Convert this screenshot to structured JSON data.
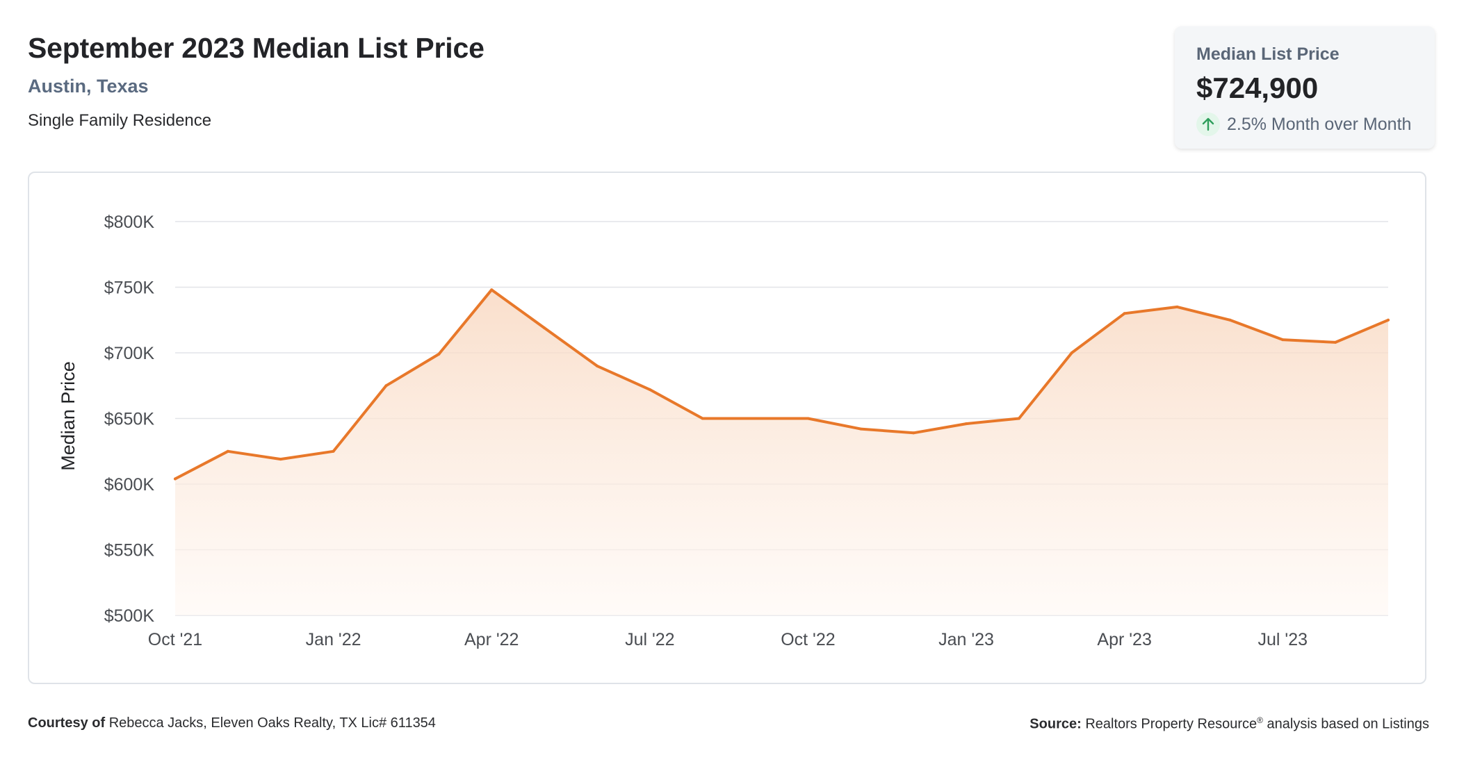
{
  "header": {
    "title": "September 2023 Median List Price",
    "location": "Austin, Texas",
    "property_type": "Single Family Residence"
  },
  "kpi": {
    "label": "Median List Price",
    "value": "$724,900",
    "change": "2.5% Month over Month",
    "direction_icon": "arrow-up-icon",
    "positive_color": "#2e9e5b"
  },
  "footer": {
    "courtesy_label": "Courtesy of",
    "courtesy_text": "Rebecca Jacks, Eleven Oaks Realty, TX Lic# 611354",
    "source_label": "Source:",
    "source_text_before": "Realtors Property Resource",
    "source_mark": "®",
    "source_text_after": " analysis based on Listings"
  },
  "colors": {
    "line": "#e8782a",
    "fill_top": "#f8d7bf",
    "fill_bottom": "#fff8f3",
    "grid": "#e2e4e8",
    "tick_text": "#4a4d52"
  },
  "chart_data": {
    "type": "area",
    "ylabel": "Median Price",
    "xlabel": "",
    "ylim": [
      500000,
      800000
    ],
    "y_ticks": [
      500000,
      550000,
      600000,
      650000,
      700000,
      750000,
      800000
    ],
    "y_tick_labels": [
      "$500K",
      "$550K",
      "$600K",
      "$650K",
      "$700K",
      "$750K",
      "$800K"
    ],
    "x_tick_labels": [
      "Oct '21",
      "Jan '22",
      "Apr '22",
      "Jul '22",
      "Oct '22",
      "Jan '23",
      "Apr '23",
      "Jul '23"
    ],
    "x_tick_indices": [
      0,
      3,
      6,
      9,
      12,
      15,
      18,
      21
    ],
    "grid": true,
    "series": [
      {
        "months": [
          "2021-10",
          "2021-11",
          "2021-12",
          "2022-01",
          "2022-02",
          "2022-03",
          "2022-04",
          "2022-05",
          "2022-06",
          "2022-07",
          "2022-08",
          "2022-09",
          "2022-10",
          "2022-11",
          "2022-12",
          "2023-01",
          "2023-02",
          "2023-03",
          "2023-04",
          "2023-05",
          "2023-06",
          "2023-07",
          "2023-08",
          "2023-09"
        ],
        "values": [
          604000,
          625000,
          619000,
          625000,
          675000,
          699000,
          748000,
          719000,
          690000,
          672000,
          650000,
          650000,
          650000,
          642000,
          639000,
          646000,
          650000,
          700000,
          730000,
          735000,
          725000,
          710000,
          708000,
          725000
        ]
      }
    ]
  }
}
